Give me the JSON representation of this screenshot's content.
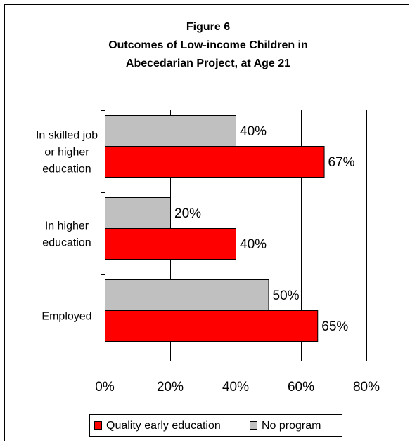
{
  "chart_data": {
    "type": "bar",
    "orientation": "horizontal",
    "title_lines": [
      "Figure 6",
      "Outcomes of Low-income Children in",
      "Abecedarian Project, at Age 21"
    ],
    "categories": [
      [
        "In skilled job",
        "or higher",
        "education"
      ],
      [
        "In higher",
        "education"
      ],
      [
        "Employed"
      ]
    ],
    "series": [
      {
        "name": "No program",
        "color": "#c0c0c0",
        "values": [
          40,
          20,
          50
        ],
        "labels": [
          "40%",
          "20%",
          "50%"
        ]
      },
      {
        "name": "Quality early education",
        "color": "#ff0000",
        "values": [
          67,
          40,
          65
        ],
        "labels": [
          "67%",
          "40%",
          "65%"
        ]
      }
    ],
    "xlim": [
      0,
      80
    ],
    "xticks": [
      0,
      20,
      40,
      60,
      80
    ],
    "xtick_labels": [
      "0%",
      "20%",
      "40%",
      "60%",
      "80%"
    ],
    "grid": "vertical",
    "legend": {
      "position": "bottom",
      "order": [
        "Quality early education",
        "No program"
      ]
    }
  }
}
